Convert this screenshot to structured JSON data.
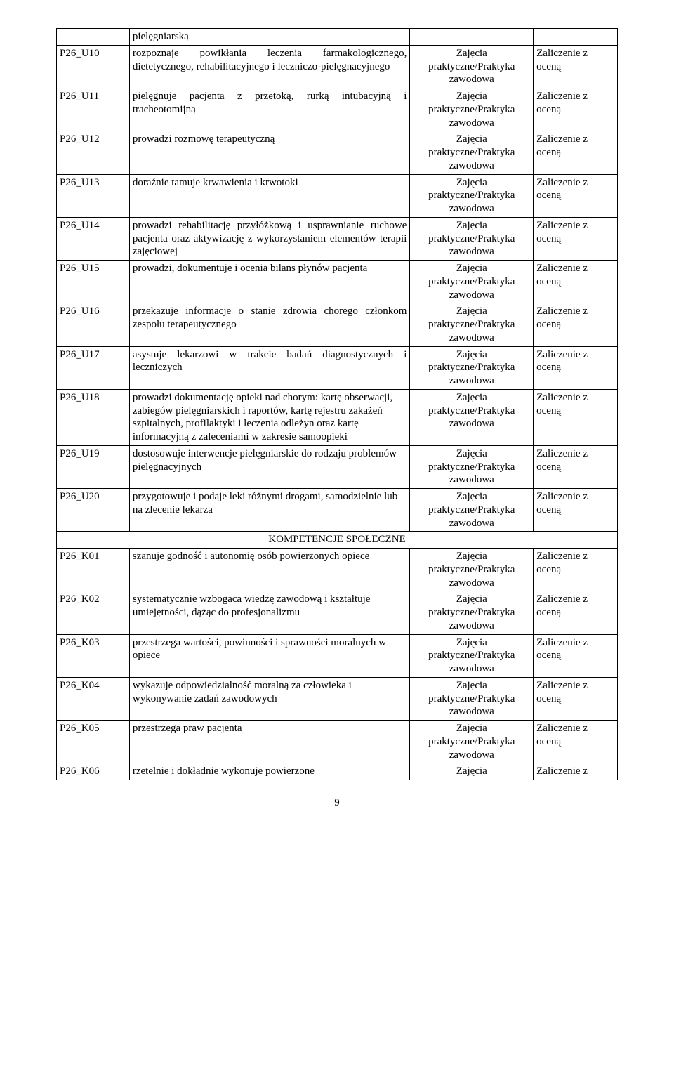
{
  "col3_three": {
    "l1": "Zajęcia",
    "l2": "praktyczne/Praktyka",
    "l3": "zawodowa"
  },
  "col4_two": {
    "l1": "Zaliczenie z",
    "l2": "oceną"
  },
  "col3_one": {
    "l1": "Zajęcia"
  },
  "col4_one": {
    "l1": "Zaliczenie z"
  },
  "section_header": "KOMPETENCJE SPOŁECZNE",
  "rows": [
    {
      "id": "",
      "desc": "pielęgniarską",
      "c3": "none",
      "c4": "none"
    },
    {
      "id": "P26_U10",
      "desc": "rozpoznaje powikłania leczenia farmakologicznego, dietetycznego, rehabilitacyjnego i leczniczo-pielęgnacyjnego",
      "c3": "three",
      "c4": "two",
      "just": true
    },
    {
      "id": "P26_U11",
      "desc": "pielęgnuje pacjenta z przetoką, rurką intubacyjną i tracheotomijną",
      "c3": "three",
      "c4": "two",
      "just": true
    },
    {
      "id": "P26_U12",
      "desc": "prowadzi rozmowę terapeutyczną",
      "c3": "three",
      "c4": "two"
    },
    {
      "id": "P26_U13",
      "desc": "doraźnie tamuje krwawienia i krwotoki",
      "c3": "three",
      "c4": "two"
    },
    {
      "id": "P26_U14",
      "desc": "prowadzi rehabilitację przyłóżkową i usprawnianie ruchowe pacjenta oraz aktywizację z wykorzystaniem elementów terapii zajęciowej",
      "c3": "three",
      "c4": "two",
      "just": true
    },
    {
      "id": "P26_U15",
      "desc": "prowadzi, dokumentuje i ocenia bilans płynów pacjenta",
      "c3": "three",
      "c4": "two",
      "just": true
    },
    {
      "id": "P26_U16",
      "desc": "przekazuje informacje o stanie zdrowia chorego członkom zespołu terapeutycznego",
      "c3": "three",
      "c4": "two",
      "just": true
    },
    {
      "id": "P26_U17",
      "desc": "asystuje lekarzowi w trakcie badań diagnostycznych i leczniczych",
      "c3": "three",
      "c4": "two",
      "just": true
    },
    {
      "id": "P26_U18",
      "desc": "prowadzi dokumentację opieki nad chorym: kartę obserwacji, zabiegów pielęgniarskich i raportów, kartę rejestru zakażeń szpitalnych, profilaktyki i leczenia odleżyn oraz kartę informacyjną z zaleceniami w zakresie samoopieki",
      "c3": "three",
      "c4": "two"
    },
    {
      "id": "P26_U19",
      "desc": "dostosowuje interwencje pielęgniarskie do rodzaju problemów pielęgnacyjnych",
      "c3": "three",
      "c4": "two"
    },
    {
      "id": "P26_U20",
      "desc": "przygotowuje i podaje leki różnymi drogami, samodzielnie lub na zlecenie lekarza",
      "c3": "three",
      "c4": "two"
    },
    {
      "id": "P26_K01",
      "desc": "szanuje godność i autonomię osób powierzonych opiece",
      "c3": "three",
      "c4": "two",
      "section_before": true
    },
    {
      "id": "P26_K02",
      "desc": "systematycznie wzbogaca wiedzę zawodową i kształtuje umiejętności, dążąc do profesjonalizmu",
      "c3": "three",
      "c4": "two"
    },
    {
      "id": "P26_K03",
      "desc": "przestrzega wartości, powinności i sprawności moralnych w opiece",
      "c3": "three",
      "c4": "two"
    },
    {
      "id": "P26_K04",
      "desc": "wykazuje odpowiedzialność moralną za człowieka i wykonywanie zadań zawodowych",
      "c3": "three",
      "c4": "two"
    },
    {
      "id": "P26_K05",
      "desc": "przestrzega praw pacjenta",
      "c3": "three",
      "c4": "two"
    },
    {
      "id": "P26_K06",
      "desc": "rzetelnie i dokładnie wykonuje powierzone",
      "c3": "one",
      "c4": "one"
    }
  ],
  "page_number": "9"
}
